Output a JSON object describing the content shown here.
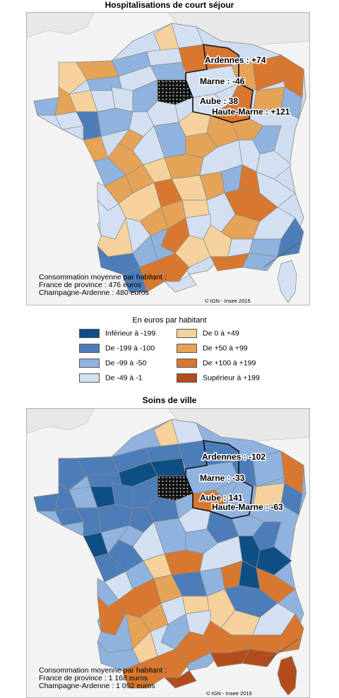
{
  "map1": {
    "title": "Hospitalisations de court séjour",
    "labels": {
      "ardennes": "Ardennes : +74",
      "marne": "Marne : -46",
      "aube": "Aube : 38",
      "haute_marne": "Haute-Marne : +121"
    },
    "note": [
      "Consommation moyenne par habitant :",
      "France de province : 476 euros",
      "Champagne-Ardenne : 480 euros"
    ],
    "credit": "© IGN - Insee 2015"
  },
  "legend": {
    "title": "En euros par habitant",
    "items": [
      {
        "label": "Inférieur à -199",
        "color": "#0e4f86"
      },
      {
        "label": "De -199 à -100",
        "color": "#4d7db8"
      },
      {
        "label": "De -99 à -50",
        "color": "#8fb2de"
      },
      {
        "label": "De -49 à -1",
        "color": "#d3e0f2"
      },
      {
        "label": "De 0 à +49",
        "color": "#f5d29c"
      },
      {
        "label": "De +50 à +99",
        "color": "#e4a356"
      },
      {
        "label": "De +100 à +199",
        "color": "#d8772f"
      },
      {
        "label": "Supérieur à +199",
        "color": "#b44d1c"
      }
    ]
  },
  "map2": {
    "title": "Soins de ville",
    "labels": {
      "ardennes": "Ardennes : -102",
      "marne": "Marne : -33",
      "aube": "Aube : 141",
      "haute_marne": "Haute-Marne : -63"
    },
    "note": [
      "Consommation moyenne par habitant :",
      "France de province : 1 168 euros",
      "Champagne-Ardenne : 1 092 euros"
    ],
    "credit": "© IGN - Insee 2015"
  }
}
